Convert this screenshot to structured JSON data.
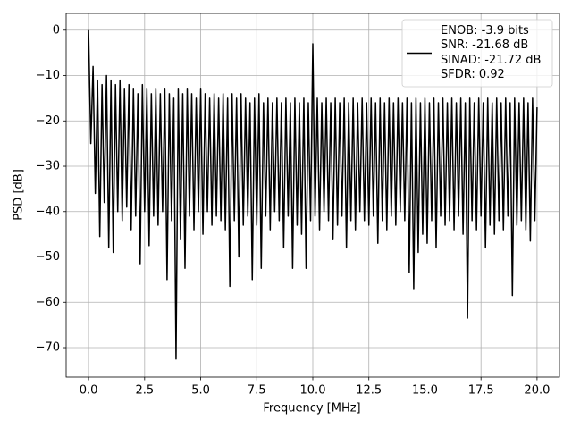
{
  "chart_data": {
    "type": "line",
    "xlabel": "Frequency [MHz]",
    "ylabel": "PSD [dB]",
    "x": [
      0,
      0.1,
      0.2,
      0.3,
      0.4,
      0.5,
      0.6,
      0.7,
      0.8,
      0.9,
      1,
      1.1,
      1.2,
      1.3,
      1.4,
      1.5,
      1.6,
      1.7,
      1.8,
      1.9,
      2,
      2.1,
      2.2,
      2.3,
      2.4,
      2.5,
      2.6,
      2.7,
      2.8,
      2.9,
      3,
      3.1,
      3.2,
      3.3,
      3.4,
      3.5,
      3.6,
      3.7,
      3.8,
      3.9,
      4,
      4.1,
      4.2,
      4.3,
      4.4,
      4.5,
      4.6,
      4.7,
      4.8,
      4.9,
      5,
      5.1,
      5.2,
      5.3,
      5.4,
      5.5,
      5.6,
      5.7,
      5.8,
      5.9,
      6,
      6.1,
      6.2,
      6.3,
      6.4,
      6.5,
      6.6,
      6.7,
      6.8,
      6.9,
      7,
      7.1,
      7.2,
      7.3,
      7.4,
      7.5,
      7.6,
      7.7,
      7.8,
      7.9,
      8,
      8.1,
      8.2,
      8.3,
      8.4,
      8.5,
      8.6,
      8.7,
      8.8,
      8.9,
      9,
      9.1,
      9.2,
      9.3,
      9.4,
      9.5,
      9.6,
      9.7,
      9.8,
      9.9,
      10,
      10.1,
      10.2,
      10.3,
      10.4,
      10.5,
      10.6,
      10.7,
      10.8,
      10.9,
      11,
      11.1,
      11.2,
      11.3,
      11.4,
      11.5,
      11.6,
      11.7,
      11.8,
      11.9,
      12,
      12.1,
      12.2,
      12.3,
      12.4,
      12.5,
      12.6,
      12.7,
      12.8,
      12.9,
      13,
      13.1,
      13.2,
      13.3,
      13.4,
      13.5,
      13.6,
      13.7,
      13.8,
      13.9,
      14,
      14.1,
      14.2,
      14.3,
      14.4,
      14.5,
      14.6,
      14.7,
      14.8,
      14.9,
      15,
      15.1,
      15.2,
      15.3,
      15.4,
      15.5,
      15.6,
      15.7,
      15.8,
      15.9,
      16,
      16.1,
      16.2,
      16.3,
      16.4,
      16.5,
      16.6,
      16.7,
      16.8,
      16.9,
      17,
      17.1,
      17.2,
      17.3,
      17.4,
      17.5,
      17.6,
      17.7,
      17.8,
      17.9,
      18,
      18.1,
      18.2,
      18.3,
      18.4,
      18.5,
      18.6,
      18.7,
      18.8,
      18.9,
      19,
      19.1,
      19.2,
      19.3,
      19.4,
      19.5,
      19.6,
      19.7,
      19.8,
      19.9,
      20
    ],
    "series": [
      {
        "name": "ENOB: -3.9 bits\nSNR: -21.68 dB\nSINAD: -21.72 dB\nSFDR: 0.92",
        "color": "#000000",
        "values": [
          0,
          -25,
          -8,
          -36,
          -11,
          -45.5,
          -12,
          -38,
          -10,
          -48,
          -11,
          -49,
          -12,
          -40,
          -11,
          -42,
          -13,
          -39,
          -12,
          -44,
          -13,
          -41,
          -14,
          -51.5,
          -12,
          -40,
          -13,
          -47.5,
          -14,
          -41,
          -13,
          -43,
          -14,
          -40,
          -13,
          -55,
          -14,
          -42,
          -15,
          -72.5,
          -13,
          -46,
          -14,
          -52.5,
          -13,
          -41,
          -14,
          -44,
          -15,
          -40,
          -13,
          -45,
          -14,
          -40,
          -15,
          -43,
          -14,
          -41,
          -15,
          -42,
          -14,
          -44,
          -15,
          -56.5,
          -14,
          -42,
          -15,
          -50,
          -14,
          -43,
          -15,
          -41,
          -16,
          -55,
          -15,
          -43,
          -14,
          -52.5,
          -16,
          -41,
          -15,
          -44,
          -16,
          -40,
          -15,
          -42,
          -16,
          -48,
          -15,
          -41,
          -16,
          -52.5,
          -15,
          -43,
          -16,
          -45,
          -15,
          -52.5,
          -16,
          -42,
          -3,
          -41,
          -15,
          -44,
          -16,
          -40,
          -15,
          -42,
          -16,
          -46,
          -15,
          -43,
          -16,
          -41,
          -15,
          -48,
          -16,
          -42,
          -15,
          -44,
          -16,
          -40,
          -15,
          -42,
          -16,
          -43,
          -15,
          -41,
          -16,
          -47,
          -15,
          -42,
          -16,
          -44,
          -15,
          -41,
          -16,
          -43,
          -15,
          -40,
          -16,
          -42,
          -15,
          -53.5,
          -16,
          -57,
          -15,
          -49,
          -16,
          -45,
          -15,
          -47,
          -16,
          -42,
          -15,
          -48,
          -16,
          -41,
          -15,
          -43,
          -16,
          -42,
          -15,
          -44,
          -16,
          -41,
          -15,
          -45,
          -16,
          -63.5,
          -15,
          -42,
          -16,
          -44,
          -15,
          -41,
          -16,
          -48,
          -15,
          -43,
          -16,
          -45,
          -15,
          -42,
          -16,
          -44,
          -15,
          -41,
          -16,
          -58.5,
          -15,
          -43,
          -16,
          -42,
          -15,
          -44,
          -16,
          -46.5,
          -15,
          -42,
          -17
        ]
      }
    ],
    "xlim": [
      -1.0,
      21.0
    ],
    "xticks": [
      {
        "value": 0,
        "label": "0.0"
      },
      2.5,
      {
        "value": 5,
        "label": "5.0"
      },
      7.5,
      {
        "value": 10,
        "label": "10.0"
      },
      12.5,
      {
        "value": 15,
        "label": "15.0"
      },
      17.5,
      {
        "value": 20,
        "label": "20.0"
      }
    ],
    "ylim": [
      -76.5,
      3.7
    ],
    "yticks": [
      {
        "value": -70,
        "label": "−70"
      },
      {
        "value": -60,
        "label": "−60"
      },
      {
        "value": -50,
        "label": "−50"
      },
      {
        "value": -40,
        "label": "−40"
      },
      {
        "value": -30,
        "label": "−30"
      },
      {
        "value": -20,
        "label": "−20"
      },
      {
        "value": -10,
        "label": "−10"
      },
      0
    ],
    "grid": true,
    "legend_loc": "upper right"
  }
}
